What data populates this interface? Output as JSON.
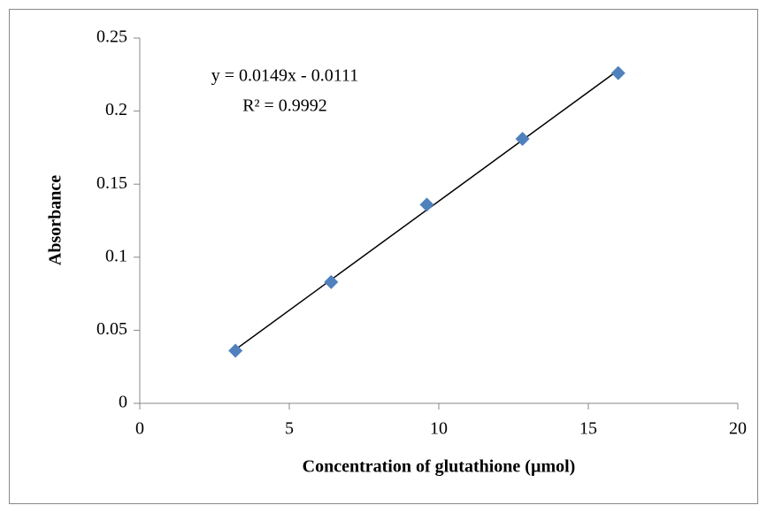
{
  "chart_data": {
    "type": "scatter",
    "xlabel": "Concentration of glutathione (µmol)",
    "ylabel": "Absorbance",
    "annotations": [
      "y = 0.0149x - 0.0111",
      "R² = 0.9992"
    ],
    "series": [
      {
        "color": "#4f81bd",
        "x": [
          3.2,
          6.4,
          9.6,
          12.8,
          16
        ],
        "values": [
          0.036,
          0.083,
          0.136,
          0.181,
          0.226
        ]
      }
    ],
    "trendline": "linear",
    "xlim": [
      0,
      20
    ],
    "xticks": [
      0,
      5,
      10,
      15,
      20
    ],
    "ylim": [
      0,
      0.25
    ],
    "yticks": [
      0,
      0.05,
      0.1,
      0.15,
      0.2,
      0.25
    ],
    "grid": false
  }
}
